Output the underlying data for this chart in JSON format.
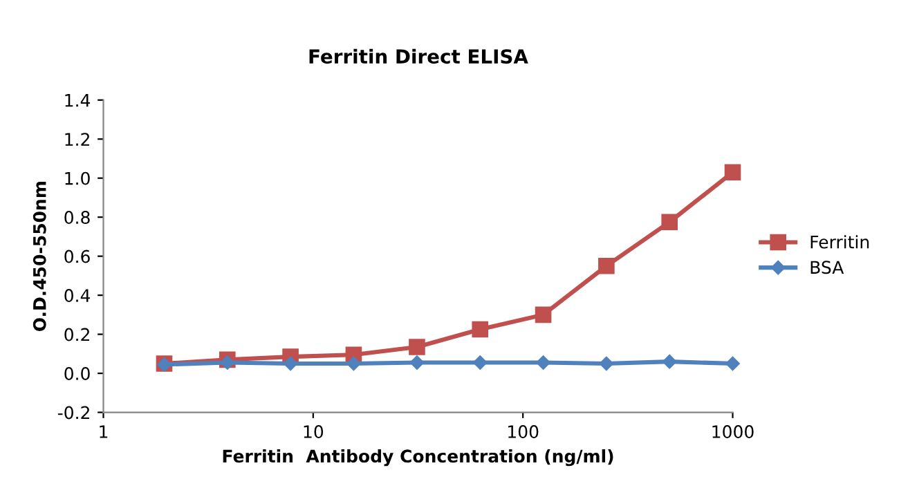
{
  "chart_data": {
    "type": "line",
    "title": "Ferritin Direct ELISA",
    "xlabel": "Ferritin  Antibody Concentration (ng/ml)",
    "ylabel": "O.D.450-550nm",
    "log": "x",
    "xlim": [
      1,
      1000
    ],
    "xticks": [
      1,
      10,
      100,
      1000
    ],
    "ylim": [
      -0.2,
      1.4
    ],
    "yticks": [
      {
        "value": -0.2,
        "label": "-0.2"
      },
      {
        "value": 0,
        "label": "0.0"
      },
      {
        "value": 0.2,
        "label": "0.2"
      },
      {
        "value": 0.4,
        "label": "0.4"
      },
      {
        "value": 0.6,
        "label": "0.6"
      },
      {
        "value": 0.8,
        "label": "0.8"
      },
      {
        "value": 1.0,
        "label": "1.0"
      },
      {
        "value": 1.2,
        "label": "1.2"
      },
      {
        "value": 1.4,
        "label": "1.4"
      }
    ],
    "x": [
      1.95,
      3.9,
      7.8,
      15.6,
      31.25,
      62.5,
      125,
      250,
      500,
      1000
    ],
    "grid": false,
    "legend": "right",
    "line_style": "solid",
    "series": [
      {
        "name": "Ferritin",
        "color": "#c0504d",
        "marker": "square",
        "values": [
          0.05,
          0.07,
          0.085,
          0.095,
          0.135,
          0.225,
          0.3,
          0.55,
          0.775,
          1.03
        ]
      },
      {
        "name": "BSA",
        "color": "#4f81bd",
        "marker": "diamond",
        "values": [
          0.045,
          0.055,
          0.05,
          0.05,
          0.055,
          0.055,
          0.055,
          0.05,
          0.06,
          0.05
        ]
      }
    ]
  }
}
